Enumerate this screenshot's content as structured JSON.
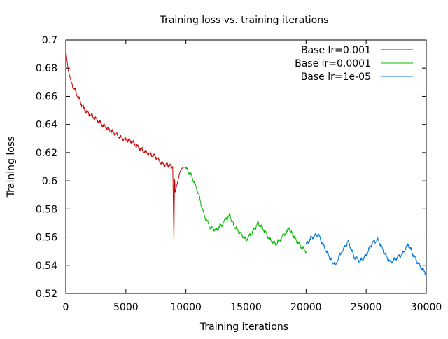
{
  "chart_data": {
    "type": "line",
    "title": "Training loss vs. training iterations",
    "xlabel": "Training iterations",
    "ylabel": "Training loss",
    "xlim": [
      0,
      30000
    ],
    "ylim": [
      0.52,
      0.7
    ],
    "xticks": [
      0,
      5000,
      10000,
      15000,
      20000,
      25000,
      30000
    ],
    "xtick_labels": [
      "0",
      "5000",
      "10000",
      "15000",
      "20000",
      "25000",
      "30000"
    ],
    "yticks": [
      0.52,
      0.54,
      0.56,
      0.58,
      0.6,
      0.62,
      0.64,
      0.66,
      0.68,
      0.7
    ],
    "ytick_labels": [
      "0.52",
      "0.54",
      "0.56",
      "0.58",
      "0.6",
      "0.62",
      "0.64",
      "0.66",
      "0.68",
      "0.7"
    ],
    "grid": false,
    "legend_position": "top-right",
    "series": [
      {
        "name": "Base lr=0.001",
        "color": "#cc0000",
        "x": [
          0,
          200,
          500,
          1000,
          1500,
          2000,
          2500,
          3000,
          3500,
          4000,
          4500,
          5000,
          5500,
          6000,
          6500,
          7000,
          7500,
          8000,
          8500,
          8900,
          9000,
          9050,
          9100,
          9200,
          9500,
          9800,
          10000
        ],
        "y": [
          0.693,
          0.68,
          0.669,
          0.66,
          0.651,
          0.647,
          0.644,
          0.64,
          0.637,
          0.634,
          0.631,
          0.629,
          0.628,
          0.624,
          0.621,
          0.619,
          0.617,
          0.612,
          0.611,
          0.61,
          0.557,
          0.602,
          0.593,
          0.597,
          0.606,
          0.609,
          0.61
        ]
      },
      {
        "name": "Base lr=0.0001",
        "color": "#00bb00",
        "x": [
          10000,
          10500,
          11000,
          11500,
          12000,
          12500,
          13000,
          13600,
          14000,
          14500,
          15000,
          15500,
          16000,
          16500,
          17000,
          17500,
          18000,
          18600,
          19000,
          19500,
          20000
        ],
        "y": [
          0.609,
          0.603,
          0.592,
          0.576,
          0.567,
          0.565,
          0.569,
          0.576,
          0.568,
          0.563,
          0.558,
          0.563,
          0.57,
          0.565,
          0.558,
          0.555,
          0.56,
          0.566,
          0.56,
          0.554,
          0.55
        ]
      },
      {
        "name": "Base lr=1e-05",
        "color": "#0077dd",
        "x": [
          20000,
          20500,
          21000,
          21500,
          22000,
          22400,
          23000,
          23500,
          24000,
          24500,
          25000,
          25500,
          26000,
          26500,
          27000,
          27500,
          28000,
          28500,
          29000,
          29500,
          30000
        ],
        "y": [
          0.555,
          0.56,
          0.562,
          0.553,
          0.545,
          0.54,
          0.55,
          0.557,
          0.546,
          0.543,
          0.547,
          0.556,
          0.558,
          0.549,
          0.542,
          0.545,
          0.548,
          0.555,
          0.546,
          0.539,
          0.534
        ]
      }
    ]
  }
}
